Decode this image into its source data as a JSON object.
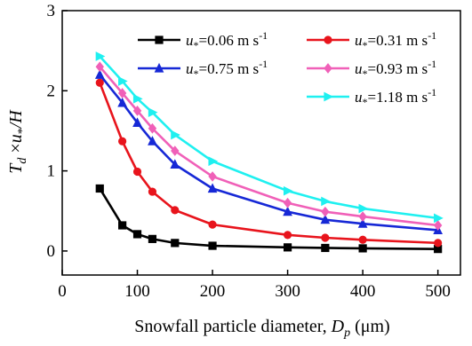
{
  "chart_data": {
    "type": "line",
    "xlabel": "Snowfall particle diameter, D_p (μm)",
    "ylabel": "T_d×u*/H",
    "xlim": [
      0,
      530
    ],
    "ylim": [
      -0.3,
      3
    ],
    "x_ticks": [
      0,
      100,
      200,
      300,
      400,
      500
    ],
    "y_ticks": [
      0,
      1,
      2,
      3
    ],
    "legend_placement": "top-right",
    "grid": false,
    "x": [
      50,
      80,
      100,
      120,
      150,
      200,
      300,
      350,
      400,
      500
    ],
    "series": [
      {
        "name": "u*=0.06 m s-1",
        "color": "#000000",
        "marker": "square",
        "values": [
          0.78,
          0.32,
          0.21,
          0.15,
          0.1,
          0.065,
          0.045,
          0.038,
          0.033,
          0.025
        ]
      },
      {
        "name": "u*=0.31 m s-1",
        "color": "#e8141c",
        "marker": "circle",
        "values": [
          2.1,
          1.37,
          0.99,
          0.74,
          0.51,
          0.33,
          0.2,
          0.165,
          0.14,
          0.1
        ]
      },
      {
        "name": "u*=0.75 m s-1",
        "color": "#1628d6",
        "marker": "triangle-up",
        "values": [
          2.2,
          1.85,
          1.6,
          1.37,
          1.08,
          0.78,
          0.49,
          0.39,
          0.34,
          0.26
        ]
      },
      {
        "name": "u*=0.93 m s-1",
        "color": "#f060b8",
        "marker": "diamond",
        "values": [
          2.3,
          1.97,
          1.75,
          1.53,
          1.25,
          0.93,
          0.6,
          0.49,
          0.43,
          0.32
        ]
      },
      {
        "name": "u*=1.18 m s-1",
        "color": "#1ff0f0",
        "marker": "triangle-right",
        "values": [
          2.43,
          2.12,
          1.9,
          1.73,
          1.45,
          1.12,
          0.75,
          0.62,
          0.53,
          0.41
        ]
      }
    ]
  },
  "axis_text": {
    "xlabel_main": "Snowfall particle diameter, ",
    "xlabel_var": "D",
    "xlabel_sub": "p",
    "xlabel_unit": " (μm)",
    "ylabel_T": "T",
    "ylabel_d": "d",
    "ylabel_times": " ×",
    "ylabel_u": "u",
    "ylabel_star": "*",
    "ylabel_rest": "/H"
  },
  "legend_text": {
    "u": "u",
    "star": "*",
    "entries": [
      "=0.06 m s",
      "=0.31 m s",
      "=0.75 m s",
      "=0.93 m s",
      "=1.18 m s"
    ],
    "exponent": "-1"
  }
}
